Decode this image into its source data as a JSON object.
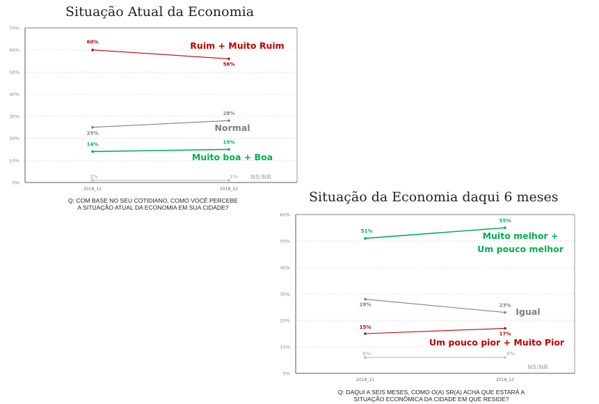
{
  "chart_data": [
    {
      "type": "line",
      "title": "Situação Atual da Economia",
      "question": [
        "Q: COM BASE NO SEU COTIDIANO, COMO VOCÊ PERCEBE",
        "A SITUAÇÃO ATUAL DA ECONOMIA EM SUA CIDADE?"
      ],
      "xlabel": "",
      "ylabel": "",
      "categories": [
        "2018_11",
        "2018_12"
      ],
      "ylim": [
        0,
        70
      ],
      "yticks": [
        "0%",
        "10%",
        "20%",
        "30%",
        "40%",
        "50%",
        "60%",
        "70%"
      ],
      "grid": true,
      "series": [
        {
          "name": "Ruim + Muito Ruim",
          "values": [
            60,
            56
          ],
          "labels": [
            "60%",
            "56%"
          ],
          "color": "#c00000",
          "label_size": "big"
        },
        {
          "name": "Normal",
          "values": [
            25,
            28
          ],
          "labels": [
            "25%",
            "28%"
          ],
          "color": "#7f7f7f",
          "label_size": "big"
        },
        {
          "name": "Muito boa + Boa",
          "values": [
            14,
            15
          ],
          "labels": [
            "14%",
            "15%"
          ],
          "color": "#00b050",
          "label_size": "big"
        },
        {
          "name": "NS/NR",
          "values": [
            1,
            1
          ],
          "labels": [
            "1%",
            "1%"
          ],
          "color": "#bfbfbf",
          "label_size": "small"
        }
      ]
    },
    {
      "type": "line",
      "title": "Situação da Economia daqui 6 meses",
      "question": [
        "Q: DAQUI A SEIS MESES, COMO O(A) SR(A) ACHA QUE ESTARÁ A",
        "SITUAÇÃO ECONÔMICA DA CIDADE EM QUE RESIDE?"
      ],
      "xlabel": "",
      "ylabel": "",
      "categories": [
        "2018_11",
        "2018_12"
      ],
      "ylim": [
        0,
        60
      ],
      "yticks": [
        "0%",
        "10%",
        "20%",
        "30%",
        "40%",
        "50%",
        "60%"
      ],
      "grid": true,
      "series": [
        {
          "name": "Muito melhor + Um pouco melhor",
          "name_lines": [
            "Muito melhor +",
            "Um pouco melhor"
          ],
          "values": [
            51,
            55
          ],
          "labels": [
            "51%",
            "55%"
          ],
          "color": "#00b050",
          "label_size": "big"
        },
        {
          "name": "Igual",
          "values": [
            28,
            23
          ],
          "labels": [
            "28%",
            "23%"
          ],
          "color": "#7f7f7f",
          "label_size": "big"
        },
        {
          "name": "Um pouco pior + Muito Pior",
          "values": [
            15,
            17
          ],
          "labels": [
            "15%",
            "17%"
          ],
          "color": "#c00000",
          "label_size": "big"
        },
        {
          "name": "NS/NR",
          "values": [
            6,
            6
          ],
          "labels": [
            "6%",
            "6%"
          ],
          "color": "#bfbfbf",
          "label_size": "small"
        }
      ]
    }
  ]
}
